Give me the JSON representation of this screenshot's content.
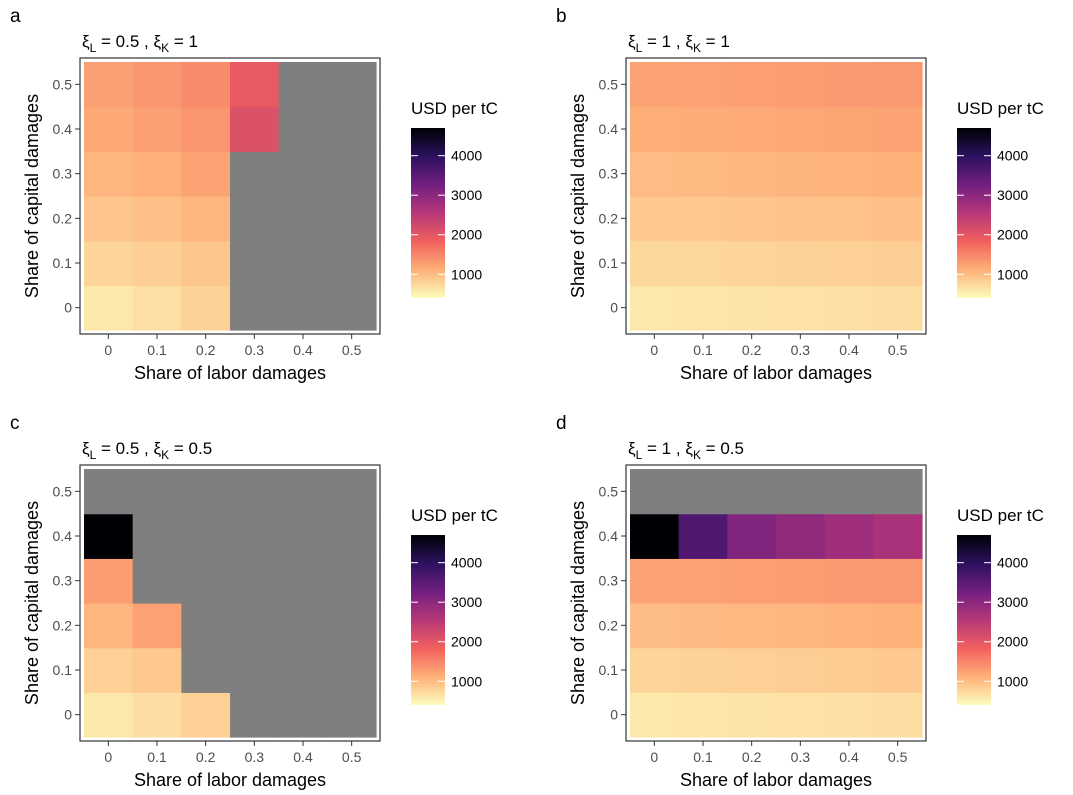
{
  "scale": {
    "legend_title": "USD per tC",
    "breaks": [
      1000,
      2000,
      3000,
      4000
    ],
    "break_labels": [
      "1000",
      "2000",
      "3000",
      "4000"
    ],
    "limits": [
      400,
      4700
    ],
    "palette": [
      "#fcfdbf",
      "#feb078",
      "#f1605d",
      "#b73779",
      "#721f81",
      "#2c115f",
      "#000004"
    ],
    "na_color": "#7f7f7f"
  },
  "chart_data": [
    {
      "type": "heatmap",
      "panel_label": "a",
      "title": {
        "xi": "ξ",
        "sub1": "L",
        "mid": " = 0.5 ,  ",
        "sub2": "K",
        "end": " = 1"
      },
      "xlabel": "Share of labor damages",
      "ylabel": "Share of capital damages",
      "x": [
        0,
        0.1,
        0.2,
        0.3,
        0.4,
        0.5
      ],
      "x_tick_labels": [
        "0",
        "0.1",
        "0.2",
        "0.3",
        "0.4",
        "0.5"
      ],
      "y": [
        0,
        0.1,
        0.2,
        0.3,
        0.4,
        0.5
      ],
      "y_tick_labels": [
        "0",
        "0.1",
        "0.2",
        "0.3",
        "0.4",
        "0.5"
      ],
      "z": [
        [
          600,
          680,
          800,
          null,
          null,
          null
        ],
        [
          770,
          830,
          910,
          null,
          null,
          null
        ],
        [
          920,
          980,
          1060,
          null,
          null,
          null
        ],
        [
          1060,
          1120,
          1230,
          null,
          null,
          null
        ],
        [
          1180,
          1260,
          1360,
          2100,
          null,
          null
        ],
        [
          1260,
          1340,
          1450,
          1950,
          null,
          null
        ]
      ]
    },
    {
      "type": "heatmap",
      "panel_label": "b",
      "title": {
        "xi": "ξ",
        "sub1": "L",
        "mid": " = 1 ,  ",
        "sub2": "K",
        "end": " = 1"
      },
      "xlabel": "Share of labor damages",
      "ylabel": "Share of capital damages",
      "x": [
        0,
        0.1,
        0.2,
        0.3,
        0.4,
        0.5
      ],
      "x_tick_labels": [
        "0",
        "0.1",
        "0.2",
        "0.3",
        "0.4",
        "0.5"
      ],
      "y": [
        0,
        0.1,
        0.2,
        0.3,
        0.4,
        0.5
      ],
      "y_tick_labels": [
        "0",
        "0.1",
        "0.2",
        "0.3",
        "0.4",
        "0.5"
      ],
      "z": [
        [
          600,
          620,
          640,
          660,
          680,
          700
        ],
        [
          740,
          760,
          780,
          800,
          820,
          840
        ],
        [
          880,
          900,
          920,
          940,
          960,
          980
        ],
        [
          1010,
          1030,
          1050,
          1070,
          1090,
          1110
        ],
        [
          1130,
          1150,
          1170,
          1190,
          1210,
          1230
        ],
        [
          1230,
          1250,
          1270,
          1290,
          1310,
          1330
        ]
      ]
    },
    {
      "type": "heatmap",
      "panel_label": "c",
      "title": {
        "xi": "ξ",
        "sub1": "L",
        "mid": " = 0.5 ,  ",
        "sub2": "K",
        "end": " = 0.5"
      },
      "xlabel": "Share of labor damages",
      "ylabel": "Share of capital damages",
      "x": [
        0,
        0.1,
        0.2,
        0.3,
        0.4,
        0.5
      ],
      "x_tick_labels": [
        "0",
        "0.1",
        "0.2",
        "0.3",
        "0.4",
        "0.5"
      ],
      "y": [
        0,
        0.1,
        0.2,
        0.3,
        0.4,
        0.5
      ],
      "y_tick_labels": [
        "0",
        "0.1",
        "0.2",
        "0.3",
        "0.4",
        "0.5"
      ],
      "z": [
        [
          600,
          700,
          820,
          null,
          null,
          null
        ],
        [
          820,
          880,
          null,
          null,
          null,
          null
        ],
        [
          1060,
          1250,
          null,
          null,
          null,
          null
        ],
        [
          1300,
          null,
          null,
          null,
          null,
          null
        ],
        [
          4700,
          null,
          null,
          null,
          null,
          null
        ],
        [
          null,
          null,
          null,
          null,
          null,
          null
        ]
      ]
    },
    {
      "type": "heatmap",
      "panel_label": "d",
      "title": {
        "xi": "ξ",
        "sub1": "L",
        "mid": " = 1 ,  ",
        "sub2": "K",
        "end": " = 0.5"
      },
      "xlabel": "Share of labor damages",
      "ylabel": "Share of capital damages",
      "x": [
        0,
        0.1,
        0.2,
        0.3,
        0.4,
        0.5
      ],
      "x_tick_labels": [
        "0",
        "0.1",
        "0.2",
        "0.3",
        "0.4",
        "0.5"
      ],
      "y": [
        0,
        0.1,
        0.2,
        0.3,
        0.4,
        0.5
      ],
      "y_tick_labels": [
        "0",
        "0.1",
        "0.2",
        "0.3",
        "0.4",
        "0.5"
      ],
      "z": [
        [
          600,
          620,
          640,
          660,
          680,
          700
        ],
        [
          780,
          800,
          820,
          840,
          860,
          880
        ],
        [
          1000,
          1020,
          1040,
          1060,
          1080,
          1100
        ],
        [
          1230,
          1250,
          1270,
          1290,
          1310,
          1330
        ],
        [
          4700,
          3600,
          3100,
          2950,
          2800,
          2700
        ],
        [
          null,
          null,
          null,
          null,
          null,
          null
        ]
      ]
    }
  ]
}
